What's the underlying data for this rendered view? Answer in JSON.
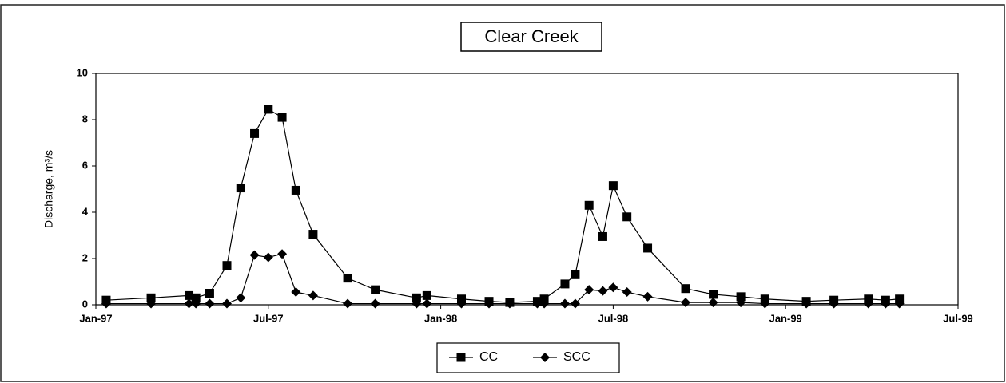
{
  "chart_data": {
    "type": "line",
    "title": "Clear Creek",
    "ylabel": "Discharge, m³/s",
    "x": [
      1997.03,
      1997.16,
      1997.27,
      1997.29,
      1997.33,
      1997.38,
      1997.42,
      1997.46,
      1997.5,
      1997.54,
      1997.58,
      1997.63,
      1997.73,
      1997.81,
      1997.93,
      1997.96,
      1998.06,
      1998.14,
      1998.2,
      1998.28,
      1998.3,
      1998.36,
      1998.39,
      1998.43,
      1998.47,
      1998.5,
      1998.54,
      1998.6,
      1998.71,
      1998.79,
      1998.87,
      1998.94,
      1999.06,
      1999.14,
      1999.24,
      1999.29,
      1999.33
    ],
    "series": [
      {
        "name": "CC",
        "color": "#000000",
        "marker": "square",
        "values": [
          0.2,
          0.3,
          0.4,
          0.3,
          0.5,
          1.7,
          5.05,
          7.4,
          8.45,
          8.1,
          4.95,
          3.05,
          1.15,
          0.65,
          0.3,
          0.4,
          0.25,
          0.15,
          0.1,
          0.15,
          0.25,
          0.9,
          1.3,
          4.3,
          2.95,
          5.15,
          3.8,
          2.45,
          0.7,
          0.45,
          0.35,
          0.25,
          0.15,
          0.2,
          0.25,
          0.2,
          0.25
        ]
      },
      {
        "name": "SCC",
        "color": "#000000",
        "marker": "diamond",
        "values": [
          0.05,
          0.05,
          0.05,
          0.05,
          0.05,
          0.05,
          0.3,
          2.15,
          2.05,
          2.2,
          0.55,
          0.4,
          0.05,
          0.05,
          0.05,
          0.05,
          0.05,
          0.05,
          0.05,
          0.05,
          0.05,
          0.05,
          0.05,
          0.65,
          0.6,
          0.75,
          0.55,
          0.35,
          0.1,
          0.1,
          0.1,
          0.05,
          0.05,
          0.05,
          0.05,
          0.05,
          0.05
        ]
      }
    ],
    "xlim": [
      1997.0,
      1999.5
    ],
    "xticks": [
      {
        "value": 1997.0,
        "label": "Jan-97"
      },
      {
        "value": 1997.5,
        "label": "Jul-97"
      },
      {
        "value": 1998.0,
        "label": "Jan-98"
      },
      {
        "value": 1998.5,
        "label": "Jul-98"
      },
      {
        "value": 1999.0,
        "label": "Jan-99"
      },
      {
        "value": 1999.5,
        "label": "Jul-99"
      }
    ],
    "ylim": [
      0,
      10
    ],
    "yticks": [
      0,
      2,
      4,
      6,
      8,
      10
    ],
    "grid": false,
    "legend": "bottom"
  }
}
